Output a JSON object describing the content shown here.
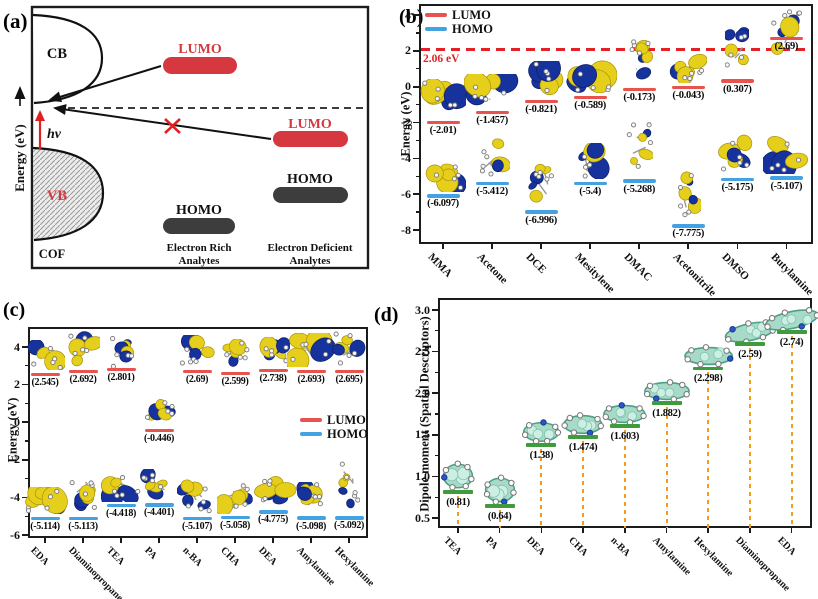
{
  "panels": {
    "a": {
      "letter": "(a)",
      "axis_label": "Energy (eV)",
      "cb_label": "CB",
      "vb_label": "VB",
      "cof_label": "COF",
      "hv_label": "hν",
      "lumo_rich_label": "LUMO",
      "homo_rich_label": "HOMO",
      "lumo_deficient_label": "LUMO",
      "homo_deficient_label": "HOMO",
      "rich_caption_line1": "Electron Rich",
      "rich_caption_line2": "Analytes",
      "deficient_caption_line1": "Electron Deficient",
      "deficient_caption_line2": "Analytes"
    },
    "b": {
      "letter": "(b)"
    },
    "c": {
      "letter": "(c)"
    },
    "d": {
      "letter": "(d)"
    }
  },
  "colors": {
    "lumo_line": "#e8534d",
    "homo_line": "#44a2e2",
    "threshold_red": "#e32127",
    "pill_red": "#d5383e",
    "pill_dark": "#3d3d3d",
    "bar_green": "#3f9b3b",
    "stem_orange": "#f29b20",
    "orbital_blue": "#16329d",
    "orbital_yellow": "#e6cf1a",
    "mol_teal": "#a7dbc8",
    "mol_teal_edge": "#4d9f86",
    "nitrogen_blue": "#2b55c8"
  },
  "chart_data": [
    {
      "id": "b",
      "type": "scatter",
      "subtype": "energy-levels",
      "ylabel": "Energy (eV)",
      "yticks": [
        "4",
        "2",
        "0",
        "-2",
        "-4",
        "-6",
        "-8"
      ],
      "ylim": [
        -8.8,
        4.6
      ],
      "grid": false,
      "legend_position": "top-left",
      "categories": [
        "MMA",
        "Acetone",
        "DCE",
        "Mesitylene",
        "DMAC",
        "Acetonitrile",
        "DMSO",
        "Butylamine"
      ],
      "series": [
        {
          "name": "LUMO",
          "color": "#e8534d",
          "values": [
            -2.01,
            -1.457,
            -0.821,
            -0.589,
            -0.173,
            -0.043,
            0.307,
            2.69
          ],
          "labels": [
            "(-2.01)",
            "(-1.457)",
            "(-0.821)",
            "(-0.589)",
            "(-0.173)",
            "(-0.043)",
            "(0.307)",
            "(2.69)"
          ]
        },
        {
          "name": "HOMO",
          "color": "#44a2e2",
          "values": [
            -6.097,
            -5.412,
            -6.996,
            -5.4,
            -5.268,
            -7.775,
            -5.175,
            -5.107
          ],
          "labels": [
            "(-6.097)",
            "(-5.412)",
            "(-6.996)",
            "(-5.4)",
            "(-5.268)",
            "(-7.775)",
            "(-5.175)",
            "(-5.107)"
          ]
        }
      ],
      "threshold": {
        "value": 2.06,
        "label": "2.06 eV",
        "color": "#e32127"
      }
    },
    {
      "id": "c",
      "type": "scatter",
      "subtype": "energy-levels",
      "ylabel": "Energy (eV)",
      "yticks": [
        "4",
        "2",
        "0",
        "-2",
        "-4",
        "-6"
      ],
      "ylim": [
        -6.2,
        5.1
      ],
      "grid": false,
      "legend_position": "middle-right",
      "categories": [
        "EDA",
        "Diaminopropane",
        "TEA",
        "PA",
        "n-BA",
        "CHA",
        "DEA",
        "Amylamine",
        "Hexylamine"
      ],
      "series": [
        {
          "name": "LUMO",
          "color": "#e8534d",
          "values": [
            2.545,
            2.692,
            2.801,
            -0.446,
            2.69,
            2.599,
            2.738,
            2.693,
            2.695
          ],
          "labels": [
            "(2.545)",
            "(2.692)",
            "(2.801)",
            "(-0.446)",
            "(2.69)",
            "(2.599)",
            "(2.738)",
            "(2.693)",
            "(2.695)"
          ]
        },
        {
          "name": "HOMO",
          "color": "#44a2e2",
          "values": [
            -5.114,
            -5.113,
            -4.418,
            -4.401,
            -5.107,
            -5.058,
            -4.775,
            -5.098,
            -5.092
          ],
          "labels": [
            "(-5.114)",
            "(-5.113)",
            "(-4.418)",
            "(-4.401)",
            "(-5.107)",
            "(-5.058)",
            "(-4.775)",
            "(-5.098)",
            "(-5.092)"
          ]
        }
      ]
    },
    {
      "id": "d",
      "type": "scatter",
      "subtype": "dipole-moment",
      "ylabel": "Dipole moment  (Spatial Descriptors)",
      "yticks": [
        "3.0",
        "2.5",
        "2.0",
        "1.5",
        "1.0",
        "0.5"
      ],
      "ylim": [
        0.35,
        3.15
      ],
      "grid": false,
      "categories": [
        "TEA",
        "PA",
        "DEA",
        "CHA",
        "n-BA",
        "Amylamine",
        "Hexylamine",
        "Diaminopropane",
        "EDA"
      ],
      "values": [
        0.81,
        0.64,
        1.38,
        1.474,
        1.603,
        1.882,
        2.298,
        2.59,
        2.74
      ],
      "labels": [
        "(0.81)",
        "(0.64)",
        "(1.38)",
        "(1.474)",
        "(1.603)",
        "(1.882)",
        "(2.298)",
        "(2.59)",
        "(2.74)"
      ],
      "bar_color": "#3f9b3b",
      "stem_color": "#f29b20"
    }
  ]
}
